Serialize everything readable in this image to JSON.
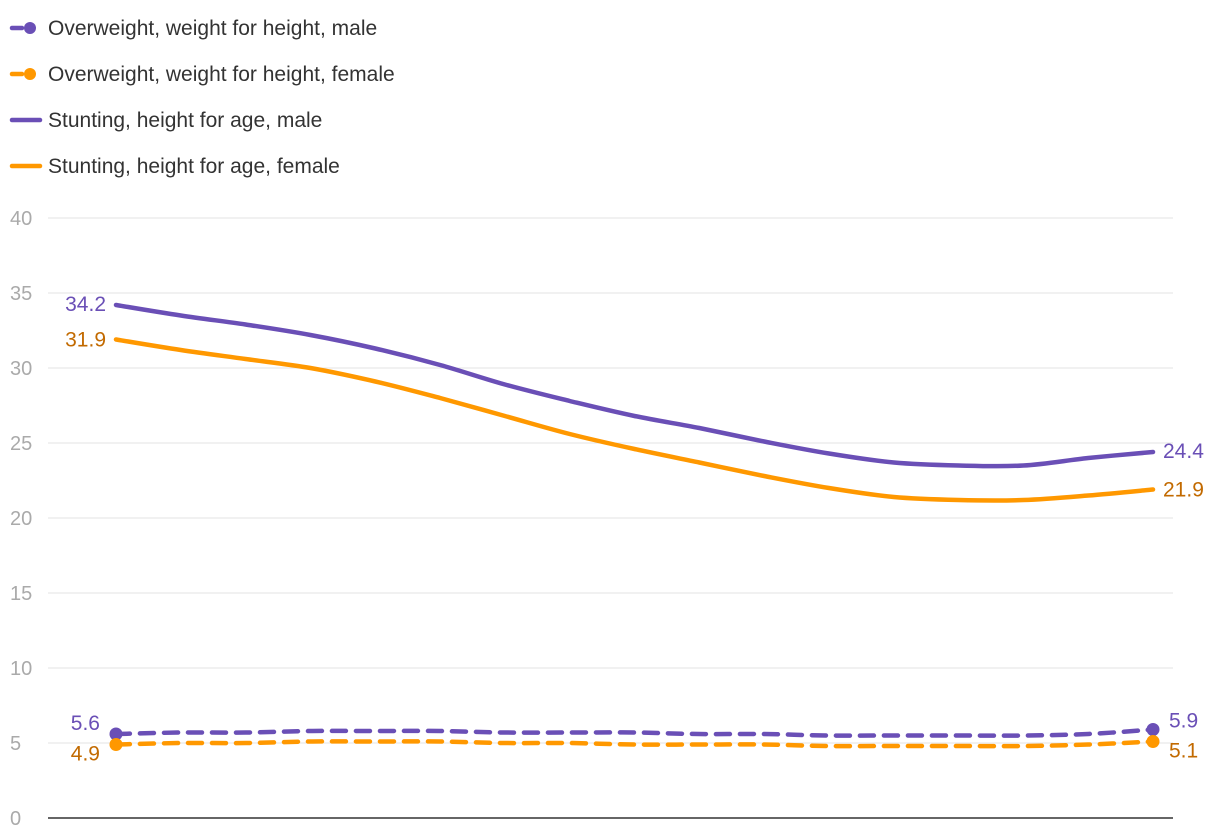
{
  "chart_data": {
    "type": "line",
    "title": "",
    "xlabel": "",
    "ylabel": "",
    "ylim": [
      0,
      40
    ],
    "yticks": [
      0,
      5,
      10,
      15,
      20,
      25,
      30,
      35,
      40
    ],
    "grid": true,
    "legend_position": "top-left",
    "x_count": 17,
    "series": [
      {
        "name": "Overweight, weight for height, male",
        "color": "#6a4fb6",
        "label_color": "#6a4fb6",
        "style": "dashed",
        "marker": "endpoints",
        "values": [
          5.6,
          5.7,
          5.7,
          5.8,
          5.8,
          5.8,
          5.7,
          5.7,
          5.7,
          5.6,
          5.6,
          5.5,
          5.5,
          5.5,
          5.5,
          5.6,
          5.9
        ]
      },
      {
        "name": "Overweight, weight for height, female",
        "color": "#ff9800",
        "label_color": "#c26a00",
        "style": "dashed",
        "marker": "endpoints",
        "values": [
          4.9,
          5.0,
          5.0,
          5.1,
          5.1,
          5.1,
          5.0,
          5.0,
          4.9,
          4.9,
          4.9,
          4.8,
          4.8,
          4.8,
          4.8,
          4.9,
          5.1
        ]
      },
      {
        "name": "Stunting, height for age, male",
        "color": "#6a4fb6",
        "label_color": "#6a4fb6",
        "style": "solid",
        "marker": "none",
        "values": [
          34.2,
          33.5,
          32.9,
          32.2,
          31.3,
          30.2,
          28.9,
          27.8,
          26.8,
          26.0,
          25.1,
          24.3,
          23.7,
          23.5,
          23.5,
          24.0,
          24.4
        ]
      },
      {
        "name": "Stunting, height for age, female",
        "color": "#ff9800",
        "label_color": "#c26a00",
        "style": "solid",
        "marker": "none",
        "values": [
          31.9,
          31.2,
          30.6,
          30.0,
          29.1,
          28.0,
          26.8,
          25.6,
          24.6,
          23.7,
          22.8,
          22.0,
          21.4,
          21.2,
          21.2,
          21.5,
          21.9
        ]
      }
    ],
    "end_labels": [
      {
        "series": 2,
        "side": "start",
        "text": "34.2"
      },
      {
        "series": 2,
        "side": "end",
        "text": "24.4"
      },
      {
        "series": 3,
        "side": "start",
        "text": "31.9"
      },
      {
        "series": 3,
        "side": "end",
        "text": "21.9"
      },
      {
        "series": 0,
        "side": "start",
        "text": "5.6"
      },
      {
        "series": 0,
        "side": "end",
        "text": "5.9"
      },
      {
        "series": 1,
        "side": "start",
        "text": "4.9"
      },
      {
        "series": 1,
        "side": "end",
        "text": "5.1"
      }
    ]
  }
}
